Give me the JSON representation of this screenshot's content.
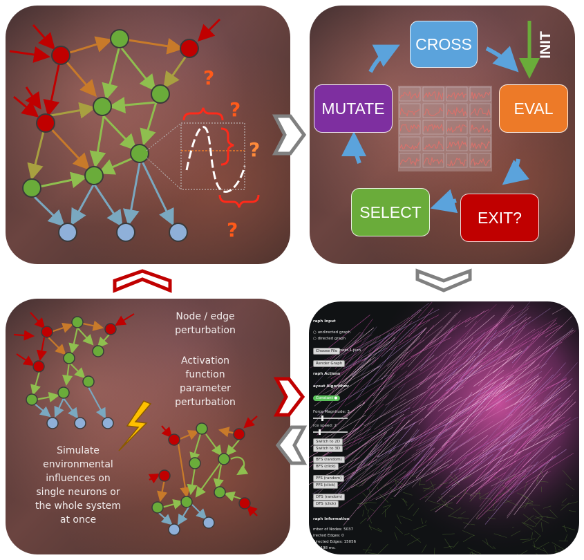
{
  "cycle": {
    "boxes": {
      "cross": {
        "label": "CROSS",
        "color": "#5ba3dc"
      },
      "eval": {
        "label": "EVAL",
        "color": "#ed7a28"
      },
      "exit": {
        "label": "EXIT?",
        "color": "#c00000"
      },
      "select": {
        "label": "SELECT",
        "color": "#6aac3a"
      },
      "mutate": {
        "label": "MUTATE",
        "color": "#7e2fa0"
      }
    },
    "init_label": "INIT"
  },
  "question_mark": "?",
  "perturbation": {
    "node_edge": [
      "Node / edge",
      "perturbation"
    ],
    "activation": [
      "Activation",
      "function",
      "parameter",
      "perturbation"
    ],
    "simulate": [
      "Simulate",
      "environmental",
      "influences on",
      "single neurons or",
      "the whole system",
      "at once"
    ]
  },
  "controls": {
    "title": "s",
    "graph_input": "raph Input",
    "undirected": "undirected graph",
    "directed": "directed graph",
    "choose_file": "Choose File",
    "file_name": "flower-1.json",
    "render_graph": "Render Graph",
    "graph_actions": "raph Actions",
    "layout_algorithm": "ayout Algorithm:",
    "constant": "Constant",
    "force_magnitude": "Force Magnitude: 3",
    "force_speed": "rce speed: 2",
    "switch_2d": "Switch to 2D",
    "switch_3d": "Switch to 3D",
    "bfs_random": "BFS (random)",
    "bfs_click": "BFS (click)",
    "pfs_random": "PFS (random)",
    "pfs_click": "PFS (click)",
    "dfs_random": "DFS (random)",
    "dfs_click": "DFS (click)",
    "graph_information": "raph Information",
    "num_nodes": "mber of Nodes: 5037",
    "directed_edges": "irected Edges: 0",
    "undirected_edges": "directed Edges: 15056",
    "time": "ne: 198 ms."
  },
  "colors": {
    "node_red": "#c00000",
    "node_green": "#6aac3a",
    "node_blue": "#8fb0d9",
    "arrow_red": "#c00000",
    "arrow_teal": "#7aa8c0",
    "flow_gray": "#808080",
    "flow_red": "#c00000",
    "bolt": "#ffc000",
    "question": "#ff3b1f"
  }
}
